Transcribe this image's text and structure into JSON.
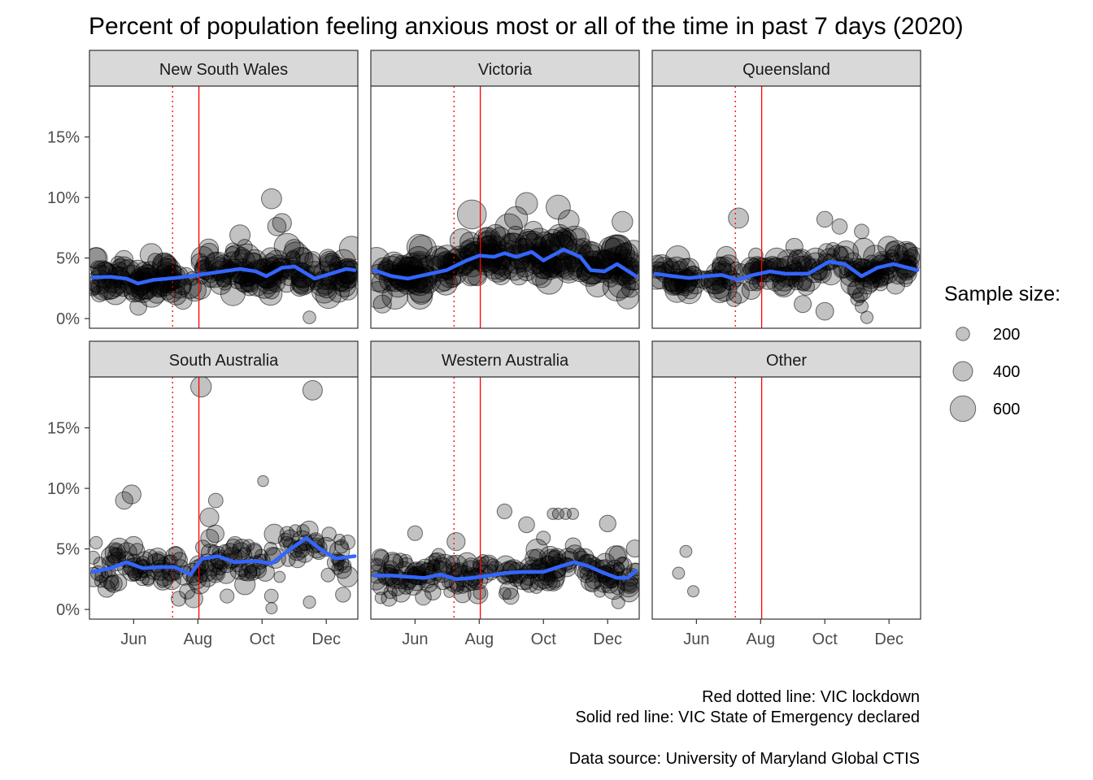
{
  "chart_data": {
    "type": "scatter",
    "title": "Percent of population feeling anxious most or all of the time in past 7 days (2020)",
    "xlabel": "",
    "ylabel": "",
    "x_ticks": [
      "Jun",
      "Aug",
      "Oct",
      "Dec"
    ],
    "x_tick_dates": [
      "2020-06-01",
      "2020-08-01",
      "2020-10-01",
      "2020-12-01"
    ],
    "xlim": [
      "2020-04-20",
      "2020-12-31"
    ],
    "y_ticks": [
      "0%",
      "5%",
      "10%",
      "15%"
    ],
    "y_tick_values": [
      0,
      5,
      10,
      15
    ],
    "ylim": [
      -0.8,
      19.2
    ],
    "grid": false,
    "vlines": [
      {
        "date": "2020-07-08",
        "style": "dotted",
        "color": "#ff0000"
      },
      {
        "date": "2020-08-02",
        "style": "solid",
        "color": "#ff0000"
      }
    ],
    "point_color": "#000000",
    "smooth_color": "#3366ff",
    "legend": {
      "title": "Sample size:",
      "position": "right",
      "entries": [
        {
          "label": "200",
          "value": 200
        },
        {
          "label": "400",
          "value": 400
        },
        {
          "label": "600",
          "value": 600
        }
      ]
    },
    "facets": [
      {
        "name": "New South Wales",
        "level": 3.6,
        "noise": 0.8,
        "n_points": 240,
        "size_range": [
          180,
          620
        ],
        "smooth": [
          [
            "2020-04-23",
            3.4
          ],
          [
            "2020-05-10",
            3.45
          ],
          [
            "2020-05-25",
            3.3
          ],
          [
            "2020-06-05",
            2.9
          ],
          [
            "2020-06-20",
            3.2
          ],
          [
            "2020-07-10",
            3.35
          ],
          [
            "2020-08-01",
            3.6
          ],
          [
            "2020-08-25",
            3.9
          ],
          [
            "2020-09-10",
            4.1
          ],
          [
            "2020-09-25",
            3.9
          ],
          [
            "2020-10-05",
            3.5
          ],
          [
            "2020-10-20",
            4.2
          ],
          [
            "2020-11-01",
            4.3
          ],
          [
            "2020-11-20",
            3.3
          ],
          [
            "2020-12-05",
            3.7
          ],
          [
            "2020-12-20",
            4.1
          ],
          [
            "2020-12-28",
            4.0
          ]
        ],
        "outliers": [
          [
            "2020-10-10",
            9.9,
            420
          ],
          [
            "2020-10-20",
            7.9,
            380
          ],
          [
            "2020-10-15",
            7.6,
            360
          ],
          [
            "2020-09-10",
            6.9,
            430
          ],
          [
            "2020-11-15",
            0.1,
            170
          ],
          [
            "2020-12-25",
            5.8,
            560
          ]
        ]
      },
      {
        "name": "Victoria",
        "level": 4.3,
        "noise": 0.9,
        "n_points": 250,
        "size_range": [
          250,
          720
        ],
        "smooth": [
          [
            "2020-04-23",
            4.0
          ],
          [
            "2020-05-10",
            3.5
          ],
          [
            "2020-05-25",
            3.3
          ],
          [
            "2020-06-10",
            3.6
          ],
          [
            "2020-07-01",
            4.0
          ],
          [
            "2020-07-20",
            4.8
          ],
          [
            "2020-08-01",
            5.2
          ],
          [
            "2020-08-15",
            5.1
          ],
          [
            "2020-08-25",
            5.4
          ],
          [
            "2020-09-05",
            5.1
          ],
          [
            "2020-09-20",
            5.5
          ],
          [
            "2020-10-01",
            4.8
          ],
          [
            "2020-10-20",
            5.7
          ],
          [
            "2020-11-05",
            5.1
          ],
          [
            "2020-11-15",
            4.0
          ],
          [
            "2020-11-28",
            3.9
          ],
          [
            "2020-12-10",
            4.5
          ],
          [
            "2020-12-28",
            3.5
          ]
        ],
        "outliers": [
          [
            "2020-07-25",
            8.6,
            720
          ],
          [
            "2020-09-15",
            9.5,
            480
          ],
          [
            "2020-10-15",
            9.2,
            560
          ],
          [
            "2020-09-05",
            8.3,
            520
          ],
          [
            "2020-10-25",
            8.1,
            450
          ],
          [
            "2020-12-15",
            8.0,
            440
          ],
          [
            "2020-05-01",
            1.2,
            350
          ],
          [
            "2020-12-20",
            1.7,
            480
          ]
        ]
      },
      {
        "name": "Queensland",
        "level": 3.8,
        "noise": 0.8,
        "n_points": 200,
        "size_range": [
          180,
          560
        ],
        "smooth": [
          [
            "2020-04-23",
            3.7
          ],
          [
            "2020-05-10",
            3.5
          ],
          [
            "2020-05-25",
            3.35
          ],
          [
            "2020-06-10",
            3.5
          ],
          [
            "2020-06-25",
            3.6
          ],
          [
            "2020-07-10",
            3.2
          ],
          [
            "2020-07-25",
            3.6
          ],
          [
            "2020-08-10",
            3.9
          ],
          [
            "2020-08-25",
            3.7
          ],
          [
            "2020-09-15",
            3.7
          ],
          [
            "2020-10-05",
            4.7
          ],
          [
            "2020-10-20",
            4.5
          ],
          [
            "2020-11-05",
            3.5
          ],
          [
            "2020-11-20",
            4.2
          ],
          [
            "2020-12-05",
            4.5
          ],
          [
            "2020-12-28",
            4.0
          ]
        ],
        "outliers": [
          [
            "2020-07-11",
            8.3,
            420
          ],
          [
            "2020-10-01",
            8.2,
            280
          ],
          [
            "2020-10-15",
            7.6,
            260
          ],
          [
            "2020-11-05",
            7.2,
            230
          ],
          [
            "2020-09-10",
            1.2,
            320
          ],
          [
            "2020-10-01",
            0.6,
            340
          ],
          [
            "2020-11-05",
            1.0,
            180
          ],
          [
            "2020-11-10",
            0.1,
            160
          ],
          [
            "2020-11-01",
            1.6,
            200
          ]
        ]
      },
      {
        "name": "South Australia",
        "level": 3.8,
        "noise": 1.1,
        "n_points": 170,
        "size_range": [
          110,
          440
        ],
        "smooth": [
          [
            "2020-04-23",
            3.1
          ],
          [
            "2020-05-10",
            3.4
          ],
          [
            "2020-05-25",
            3.9
          ],
          [
            "2020-06-10",
            3.4
          ],
          [
            "2020-06-25",
            3.5
          ],
          [
            "2020-07-10",
            3.5
          ],
          [
            "2020-07-25",
            2.9
          ],
          [
            "2020-08-05",
            4.2
          ],
          [
            "2020-08-20",
            4.4
          ],
          [
            "2020-09-05",
            3.9
          ],
          [
            "2020-09-25",
            4.0
          ],
          [
            "2020-10-10",
            3.8
          ],
          [
            "2020-10-25",
            4.8
          ],
          [
            "2020-11-12",
            5.9
          ],
          [
            "2020-11-25",
            5.0
          ],
          [
            "2020-12-10",
            4.2
          ],
          [
            "2020-12-28",
            4.4
          ]
        ],
        "outliers": [
          [
            "2020-08-04",
            18.4,
            440
          ],
          [
            "2020-11-18",
            18.1,
            400
          ],
          [
            "2020-10-02",
            10.6,
            110
          ],
          [
            "2020-05-23",
            9.0,
            330
          ],
          [
            "2020-05-30",
            9.5,
            380
          ],
          [
            "2020-08-12",
            7.6,
            380
          ],
          [
            "2020-08-18",
            9.0,
            230
          ],
          [
            "2020-10-10",
            0.1,
            130
          ],
          [
            "2020-07-28",
            0.9,
            360
          ],
          [
            "2020-11-15",
            0.6,
            160
          ]
        ]
      },
      {
        "name": "Western Australia",
        "level": 2.9,
        "noise": 0.8,
        "n_points": 200,
        "size_range": [
          110,
          480
        ],
        "smooth": [
          [
            "2020-04-23",
            2.8
          ],
          [
            "2020-05-10",
            2.8
          ],
          [
            "2020-05-25",
            2.7
          ],
          [
            "2020-06-10",
            2.6
          ],
          [
            "2020-06-25",
            2.9
          ],
          [
            "2020-07-10",
            2.5
          ],
          [
            "2020-07-25",
            2.6
          ],
          [
            "2020-08-10",
            2.8
          ],
          [
            "2020-08-25",
            3.0
          ],
          [
            "2020-09-10",
            3.1
          ],
          [
            "2020-10-01",
            3.1
          ],
          [
            "2020-10-15",
            3.5
          ],
          [
            "2020-10-30",
            3.9
          ],
          [
            "2020-11-12",
            3.6
          ],
          [
            "2020-11-25",
            3.1
          ],
          [
            "2020-12-10",
            2.6
          ],
          [
            "2020-12-20",
            2.6
          ],
          [
            "2020-12-28",
            3.2
          ]
        ],
        "outliers": [
          [
            "2020-08-25",
            8.1,
            240
          ],
          [
            "2020-10-10",
            7.9,
            130
          ],
          [
            "2020-10-15",
            7.9,
            130
          ],
          [
            "2020-10-22",
            7.9,
            130
          ],
          [
            "2020-10-29",
            7.9,
            130
          ],
          [
            "2020-12-01",
            7.1,
            300
          ],
          [
            "2020-09-15",
            7.0,
            280
          ],
          [
            "2020-06-01",
            6.3,
            240
          ],
          [
            "2020-07-10",
            5.6,
            350
          ],
          [
            "2020-10-01",
            5.9,
            210
          ]
        ]
      },
      {
        "name": "Other",
        "level": 0,
        "noise": 0,
        "n_points": 0,
        "size_range": [
          100,
          100
        ],
        "smooth": [],
        "outliers": [
          [
            "2020-05-22",
            4.8,
            150
          ],
          [
            "2020-05-15",
            3.0,
            150
          ],
          [
            "2020-05-29",
            1.5,
            130
          ]
        ]
      }
    ],
    "caption": [
      "Red dotted line: VIC lockdown",
      "Solid red line: VIC State of Emergency declared",
      "",
      "Data source: University of Maryland Global CTIS"
    ]
  }
}
